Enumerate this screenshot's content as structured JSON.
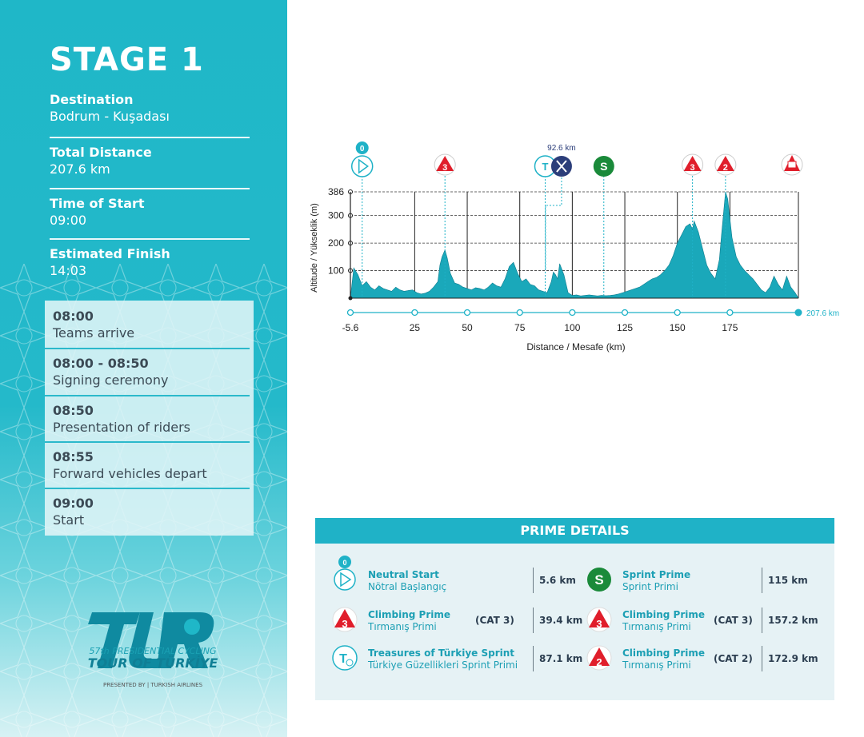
{
  "sidebar": {
    "stage_title": "STAGE 1",
    "destination_label": "Destination",
    "destination_value": "Bodrum - Kuşadası",
    "distance_label": "Total Distance",
    "distance_value": "207.6 km",
    "start_label": "Time of Start",
    "start_value": "09:00",
    "finish_label": "Estimated Finish",
    "finish_value": "14:03",
    "schedule": [
      {
        "time": "08:00",
        "desc": "Teams arrive"
      },
      {
        "time": "08:00 - 08:50",
        "desc": "Signing ceremony"
      },
      {
        "time": "08:50",
        "desc": "Presentation of riders"
      },
      {
        "time": "08:55",
        "desc": "Forward vehicles depart"
      },
      {
        "time": "09:00",
        "desc": "Start"
      }
    ],
    "logo": {
      "subtitle": "57th PRESIDENTIAL CYCLING",
      "name": "TOUR OF TÜRKİYE",
      "presented": "PRESENTED BY  |  TURKISH AIRLINES"
    }
  },
  "colors": {
    "sidebar": "#1fb7c8",
    "profile_fill": "#1aa8ba",
    "climb_red": "#e01e2b",
    "sprint_green": "#1a8a3a",
    "feed_navy": "#2c3e7a",
    "header_teal": "#1fb2c7"
  },
  "chart_data": {
    "type": "area",
    "xlabel": "Distance / Mesafe  (km)",
    "ylabel": "Altitude / Yükseklik (m)",
    "xlim": [
      -5.6,
      207.6
    ],
    "ylim": [
      0,
      386
    ],
    "x_ticks": [
      "-5.6",
      "25",
      "50",
      "75",
      "100",
      "125",
      "150",
      "175"
    ],
    "x_end_label": "207.6 km",
    "y_ticks": [
      "386",
      "300",
      "200",
      "100"
    ],
    "grid": "dashed horizontal",
    "x": [
      -5.6,
      -4,
      -2,
      0,
      2,
      4,
      6,
      8,
      10,
      12,
      14,
      16,
      18,
      20,
      22,
      24,
      26,
      28,
      30,
      32,
      34,
      36,
      37,
      38,
      39.4,
      40.5,
      42,
      44,
      46,
      48,
      50,
      52,
      54,
      56,
      58,
      60,
      62,
      64,
      66,
      68,
      70,
      72,
      74,
      76,
      78,
      80,
      82,
      84,
      86,
      88,
      90,
      91,
      92,
      93,
      94,
      96,
      98,
      100,
      102,
      104,
      106,
      108,
      110,
      112,
      114,
      116,
      118,
      120,
      122,
      124,
      126,
      128,
      130,
      132,
      134,
      136,
      138,
      140,
      142,
      144,
      146,
      148,
      150,
      152,
      154,
      156,
      157.2,
      158,
      160,
      162,
      164,
      166,
      168,
      170,
      171,
      172.9,
      174,
      176,
      178,
      180,
      182,
      184,
      186,
      188,
      190,
      192,
      194,
      196,
      198,
      200,
      202,
      204,
      206,
      207.6
    ],
    "values": [
      0,
      110,
      85,
      45,
      60,
      40,
      30,
      45,
      35,
      30,
      25,
      40,
      30,
      25,
      28,
      30,
      20,
      15,
      18,
      25,
      40,
      60,
      120,
      150,
      175,
      145,
      90,
      55,
      50,
      40,
      35,
      30,
      38,
      35,
      30,
      40,
      55,
      45,
      40,
      70,
      115,
      130,
      90,
      60,
      70,
      50,
      45,
      30,
      25,
      20,
      60,
      95,
      85,
      70,
      125,
      85,
      20,
      10,
      12,
      8,
      10,
      12,
      10,
      8,
      10,
      9,
      10,
      12,
      15,
      20,
      25,
      30,
      35,
      40,
      50,
      60,
      70,
      75,
      85,
      100,
      120,
      155,
      200,
      230,
      260,
      270,
      250,
      280,
      240,
      180,
      120,
      90,
      70,
      140,
      230,
      386,
      360,
      220,
      150,
      120,
      100,
      85,
      70,
      50,
      30,
      20,
      40,
      80,
      50,
      30,
      80,
      40,
      20,
      0
    ],
    "annotations": {
      "start_km": "0",
      "feed_label": "92.6 km"
    }
  },
  "prime_details": {
    "header": "PRIME DETAILS",
    "left": [
      {
        "name": "Neutral Start",
        "sub": "Nötral Başlangıç",
        "cat": "",
        "km": "5.6 km",
        "icon": "neutral-start-icon",
        "km_badge": "0"
      },
      {
        "name": "Climbing Prime",
        "sub": "Tırmanış Primi",
        "cat": "(CAT 3)",
        "km": "39.4 km",
        "icon": "climb-cat3-icon",
        "badge": "3"
      },
      {
        "name": "Treasures of Türkiye Sprint",
        "sub": "Türkiye Güzellikleri Sprint Primi",
        "cat": "",
        "km": "87.1 km",
        "icon": "treasures-sprint-icon"
      }
    ],
    "right": [
      {
        "name": "Sprint Prime",
        "sub": "Sprint Primi",
        "cat": "",
        "km": "115 km",
        "icon": "sprint-icon",
        "badge": "S"
      },
      {
        "name": "Climbing Prime",
        "sub": "Tırmanış Primi",
        "cat": "(CAT 3)",
        "km": "157.2 km",
        "icon": "climb-cat3-icon",
        "badge": "3"
      },
      {
        "name": "Climbing Prime",
        "sub": "Tırmanış Primi",
        "cat": "(CAT 2)",
        "km": "172.9 km",
        "icon": "climb-cat2-icon",
        "badge": "2"
      }
    ]
  }
}
